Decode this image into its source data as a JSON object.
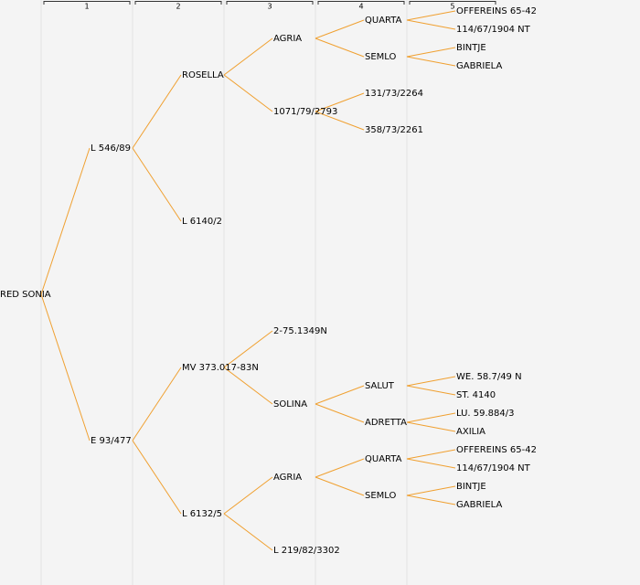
{
  "header": {
    "columns": [
      "1",
      "2",
      "3",
      "4",
      "5"
    ]
  },
  "tree": {
    "label": "RED SONIA",
    "children": [
      {
        "label": "L 546/89",
        "children": [
          {
            "label": "ROSELLA",
            "children": [
              {
                "label": "AGRIA",
                "children": [
                  {
                    "label": "QUARTA",
                    "children": [
                      {
                        "label": "OFFEREINS 65-42"
                      },
                      {
                        "label": "114/67/1904 NT"
                      }
                    ]
                  },
                  {
                    "label": "SEMLO",
                    "children": [
                      {
                        "label": "BINTJE"
                      },
                      {
                        "label": "GABRIELA"
                      }
                    ]
                  }
                ]
              },
              {
                "label": "1071/79/2793",
                "children": [
                  {
                    "label": "131/73/2264"
                  },
                  {
                    "label": "358/73/2261"
                  }
                ]
              }
            ]
          },
          {
            "label": "L 6140/2"
          }
        ]
      },
      {
        "label": "E 93/477",
        "children": [
          {
            "label": "MV 373.017-83N",
            "children": [
              {
                "label": "2-75.1349N"
              },
              {
                "label": "SOLINA",
                "children": [
                  {
                    "label": "SALUT",
                    "children": [
                      {
                        "label": "WE. 58.7/49 N"
                      },
                      {
                        "label": "ST. 4140"
                      }
                    ]
                  },
                  {
                    "label": "ADRETTA",
                    "children": [
                      {
                        "label": "LU. 59.884/3"
                      },
                      {
                        "label": "AXILIA"
                      }
                    ]
                  }
                ]
              }
            ]
          },
          {
            "label": "L 6132/5",
            "children": [
              {
                "label": "AGRIA",
                "children": [
                  {
                    "label": "QUARTA",
                    "children": [
                      {
                        "label": "OFFEREINS 65-42"
                      },
                      {
                        "label": "114/67/1904 NT"
                      }
                    ]
                  },
                  {
                    "label": "SEMLO",
                    "children": [
                      {
                        "label": "BINTJE"
                      },
                      {
                        "label": "GABRIELA"
                      }
                    ]
                  }
                ]
              },
              {
                "label": "L 219/82/3302"
              }
            ]
          }
        ]
      }
    ]
  }
}
